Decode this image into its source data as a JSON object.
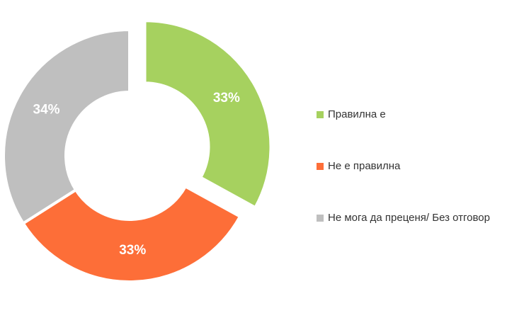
{
  "chart_data": {
    "type": "pie",
    "categories": [
      "Правилна е",
      "Не е правилна",
      "Не мога да преценя/ Без отговор"
    ],
    "values": [
      33,
      33,
      34
    ],
    "value_labels": [
      "33%",
      "33%",
      "34%"
    ],
    "colors": [
      "#a6d15f",
      "#fd6e38",
      "#bfbfbf"
    ],
    "legend": "right"
  }
}
